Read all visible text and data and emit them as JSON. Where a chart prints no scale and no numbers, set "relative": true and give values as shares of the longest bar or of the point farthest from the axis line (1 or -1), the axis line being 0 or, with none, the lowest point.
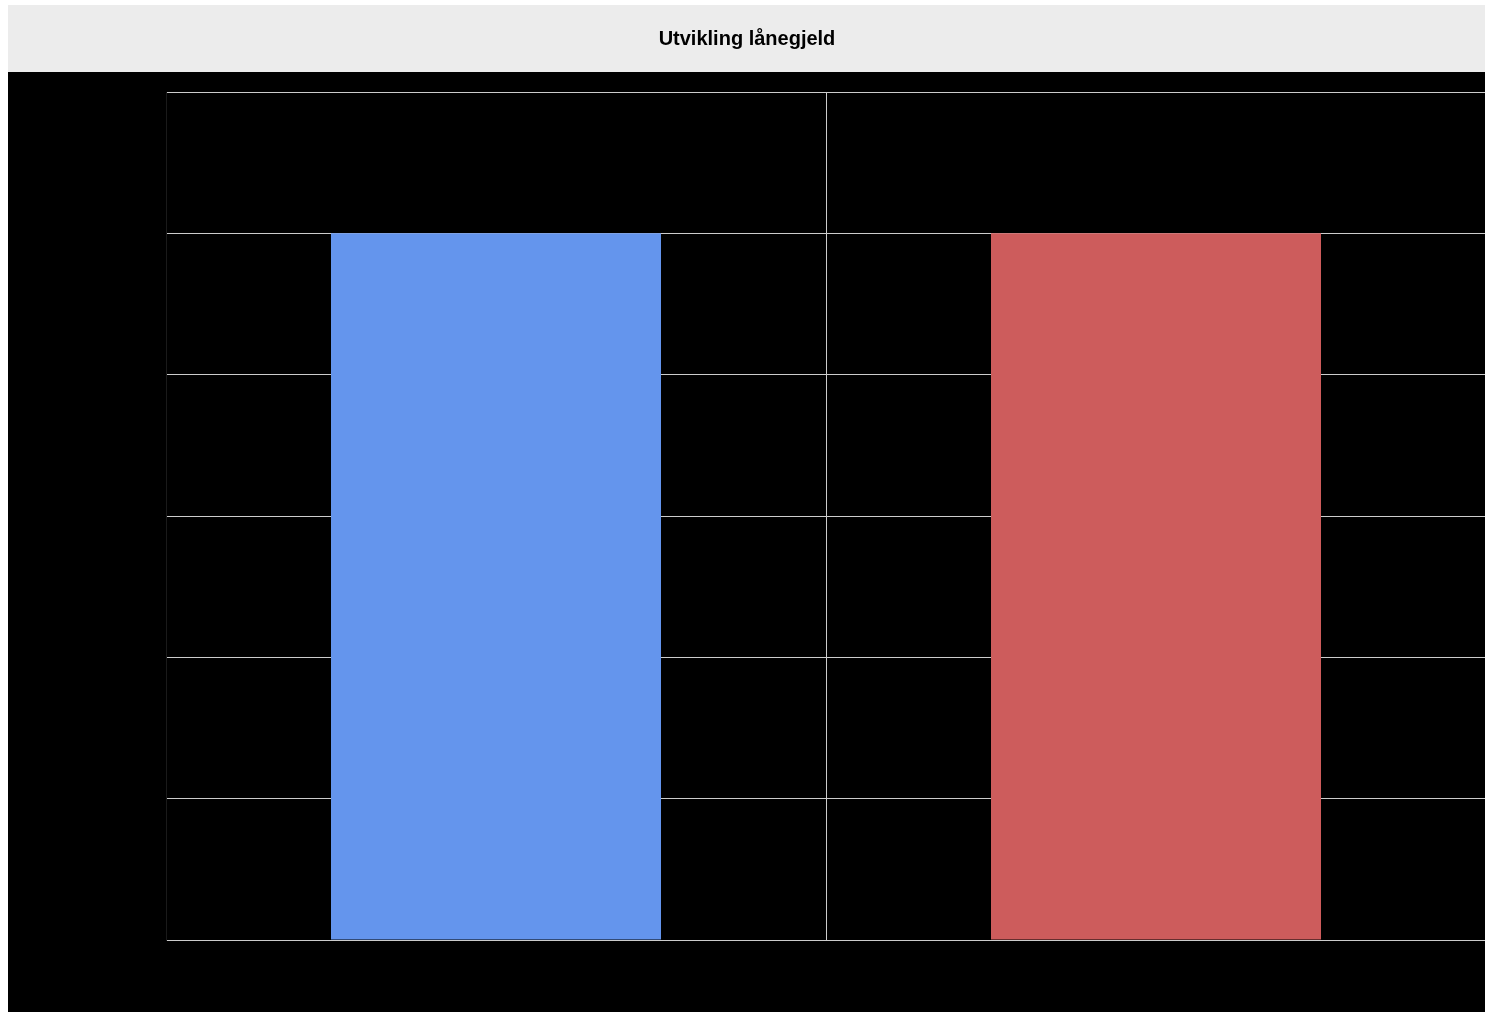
{
  "chart_data": {
    "type": "bar",
    "title": "Utvikling lånegjeld",
    "relative": true,
    "categories": [
      null,
      null
    ],
    "values": [
      1,
      1
    ],
    "colors": [
      "#6495ed",
      "#cd5c5c"
    ],
    "grid": true,
    "legend": false
  }
}
